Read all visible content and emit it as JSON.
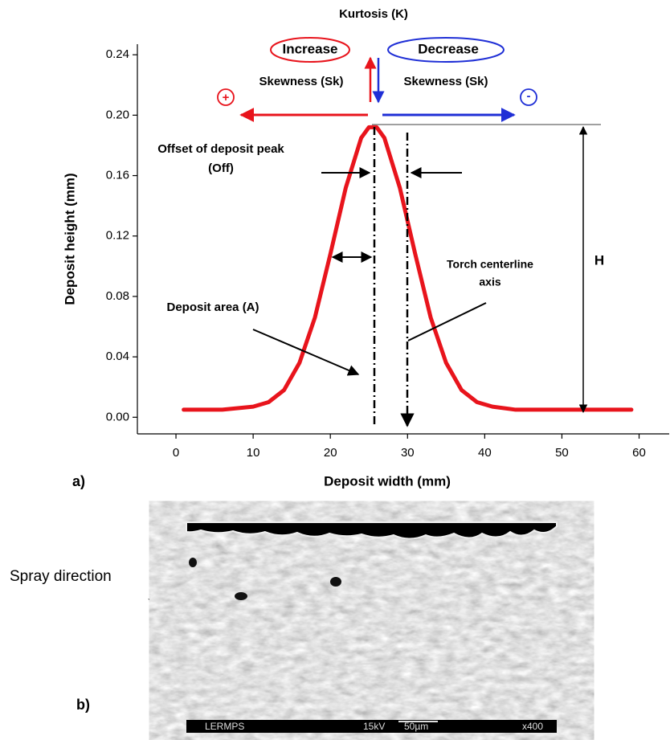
{
  "chart_data": {
    "type": "line",
    "x_label": "Deposit width (mm)",
    "y_label": "Deposit height (mm)",
    "x": [
      1,
      6,
      10,
      12,
      14,
      16,
      18,
      20,
      22,
      24,
      25,
      26,
      27,
      29,
      31,
      33,
      35,
      37,
      39,
      41,
      44,
      50,
      55,
      59
    ],
    "values": [
      0.005,
      0.005,
      0.007,
      0.01,
      0.018,
      0.036,
      0.066,
      0.108,
      0.152,
      0.185,
      0.192,
      0.192,
      0.185,
      0.152,
      0.108,
      0.066,
      0.036,
      0.018,
      0.01,
      0.007,
      0.005,
      0.005,
      0.005,
      0.005
    ],
    "color": "#e8141c",
    "xlim": [
      -5,
      63.9
    ],
    "ylim": [
      -0.011,
      0.247
    ],
    "xticks": [
      0,
      10,
      20,
      30,
      40,
      50,
      60
    ],
    "yticks": [
      {
        "value": 0,
        "label": "0.00"
      },
      {
        "value": 0.04,
        "label": "0.04"
      },
      {
        "value": 0.08,
        "label": "0.08"
      },
      {
        "value": 0.12,
        "label": "0.12"
      },
      {
        "value": 0.16,
        "label": "0.16"
      },
      {
        "value": 0.2,
        "label": "0.20"
      },
      {
        "value": 0.24,
        "label": "0.24"
      }
    ],
    "grid": false,
    "annotations": {
      "kurtosis": "Kurtosis (K)",
      "increase": "Increase",
      "decrease": "Decrease",
      "skew_left": "Skewness (Sk)",
      "skew_right": "Skewness (Sk)",
      "plus": "+",
      "minus": "-",
      "offset_1": "Offset of deposit peak",
      "offset_2": "(Off)",
      "torch_1": "Torch centerline",
      "torch_2": "axis",
      "area": "Deposit area (A)",
      "height": "H"
    }
  },
  "figure": {
    "panel_a": "a)",
    "panel_b": "b)",
    "spray": "Spray direction",
    "micrograph": {
      "lab": "LERMPS",
      "kv": "15kV",
      "scale": "50µm",
      "mag": "x400"
    }
  }
}
